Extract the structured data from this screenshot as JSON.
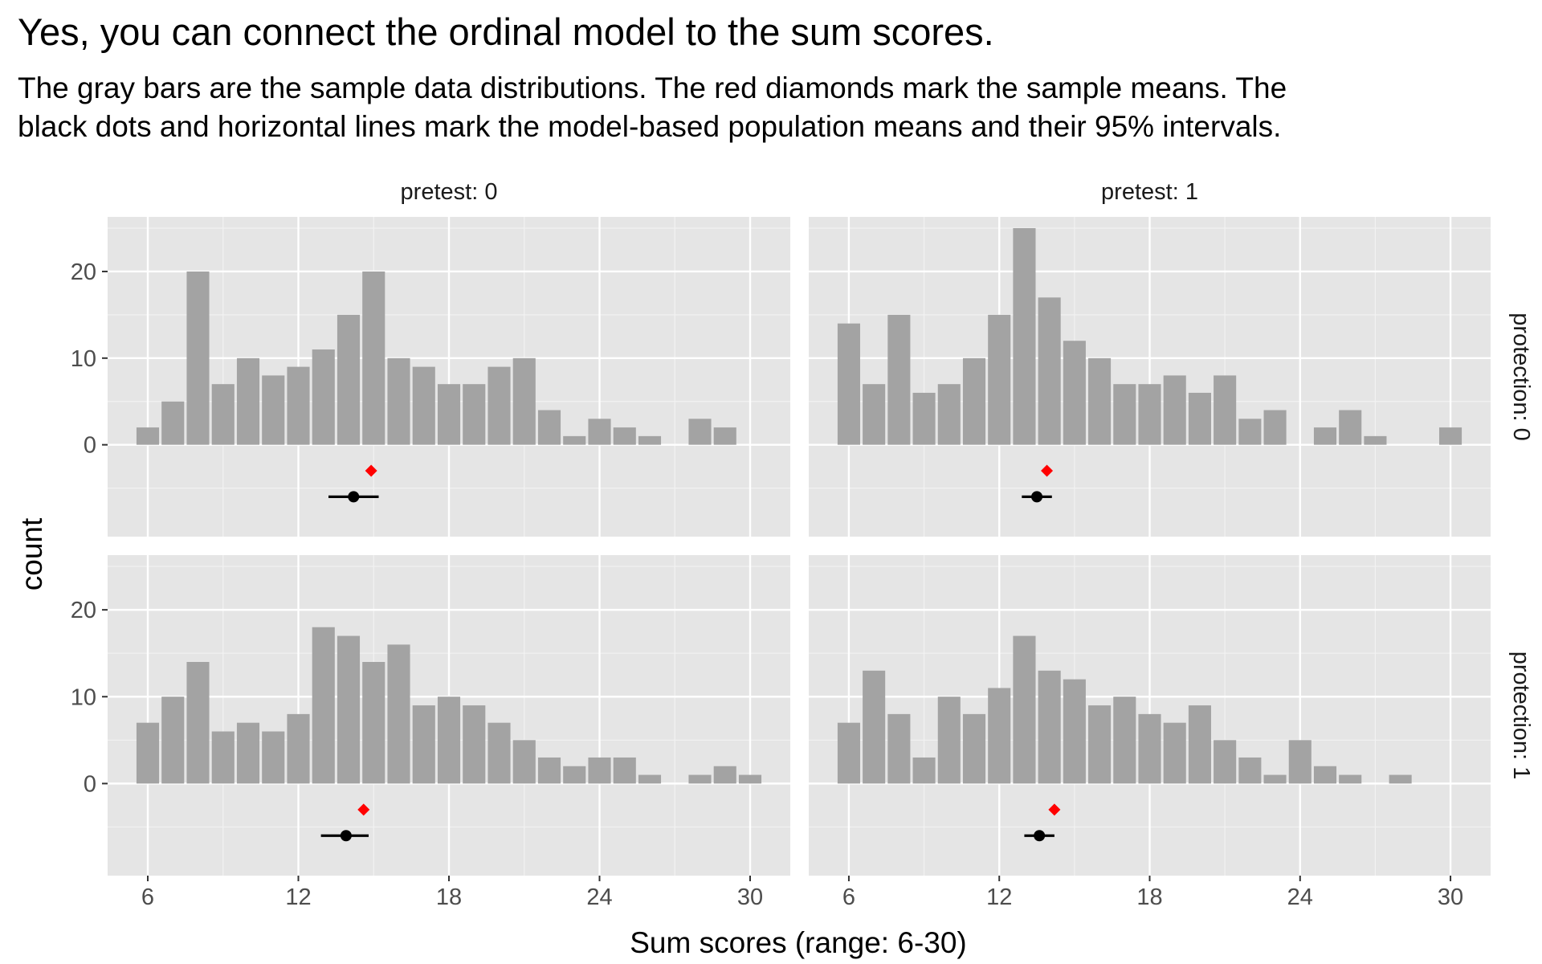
{
  "chart_data": {
    "type": "bar",
    "title": "Yes, you can connect the ordinal model to the sum scores.",
    "subtitle": "The gray bars are the sample data distributions. The red diamonds mark the sample means. The\nblack dots and horizontal lines mark the model-based population means and their 95% intervals.",
    "xlabel": "Sum scores (range: 6-30)",
    "ylabel": "count",
    "xlim": [
      4.4,
      31.6
    ],
    "ylim": [
      -10.6,
      26.3
    ],
    "xticks": [
      6,
      12,
      18,
      24,
      30
    ],
    "yticks": [
      0,
      10,
      20
    ],
    "x": [
      6,
      7,
      8,
      9,
      10,
      11,
      12,
      13,
      14,
      15,
      16,
      17,
      18,
      19,
      20,
      21,
      22,
      23,
      24,
      25,
      26,
      27,
      28,
      29,
      30
    ],
    "bar_color": "#a3a3a3",
    "panel_bg": "#e5e5e5",
    "sample_mean_color": "#ff0000",
    "model_mean_color": "#000000",
    "grid": true,
    "panels": [
      {
        "col_strip": "pretest: 0",
        "row_strip": "protection: 0",
        "counts": [
          2,
          5,
          20,
          7,
          10,
          8,
          9,
          11,
          15,
          20,
          10,
          9,
          7,
          7,
          9,
          10,
          4,
          1,
          3,
          2,
          1,
          0,
          3,
          2,
          0
        ],
        "sample_mean": 14.9,
        "model_mean": 14.2,
        "model_lower": 13.2,
        "model_upper": 15.2
      },
      {
        "col_strip": "pretest: 1",
        "row_strip": "protection: 0",
        "counts": [
          14,
          7,
          15,
          6,
          7,
          10,
          15,
          25,
          17,
          12,
          10,
          7,
          7,
          8,
          6,
          8,
          3,
          4,
          0,
          2,
          4,
          1,
          0,
          0,
          2
        ],
        "sample_mean": 13.9,
        "model_mean": 13.5,
        "model_lower": 12.9,
        "model_upper": 14.1
      },
      {
        "col_strip": "pretest: 0",
        "row_strip": "protection: 1",
        "counts": [
          7,
          10,
          14,
          6,
          7,
          6,
          8,
          18,
          17,
          14,
          16,
          9,
          10,
          9,
          7,
          5,
          3,
          2,
          3,
          3,
          1,
          0,
          1,
          2,
          1
        ],
        "sample_mean": 14.6,
        "model_mean": 13.9,
        "model_lower": 12.9,
        "model_upper": 14.8
      },
      {
        "col_strip": "pretest: 1",
        "row_strip": "protection: 1",
        "counts": [
          7,
          13,
          8,
          3,
          10,
          8,
          11,
          17,
          13,
          12,
          9,
          10,
          8,
          7,
          9,
          5,
          3,
          1,
          5,
          2,
          1,
          0,
          1,
          0,
          0
        ],
        "sample_mean": 14.2,
        "model_mean": 13.6,
        "model_lower": 13.0,
        "model_upper": 14.2
      }
    ]
  }
}
